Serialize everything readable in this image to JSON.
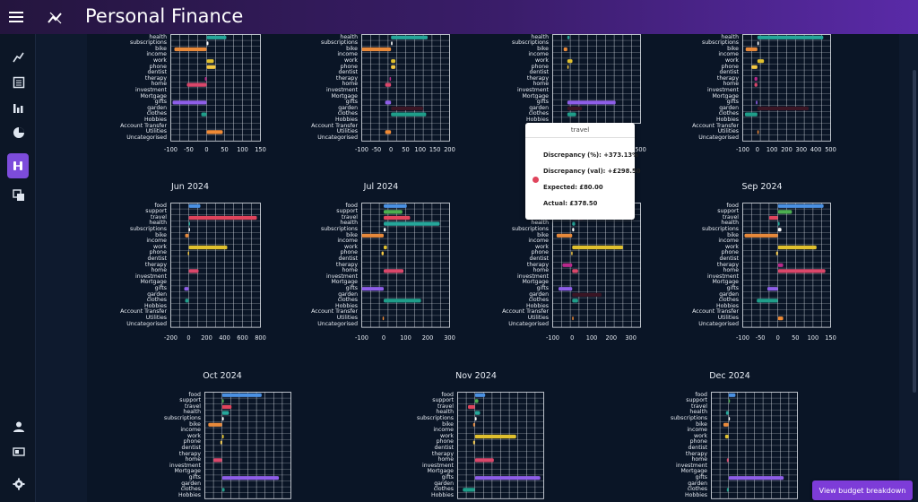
{
  "app": {
    "title": "Personal Finance"
  },
  "sidebar": {
    "items": [
      {
        "icon": "trend-icon",
        "label": "Trends"
      },
      {
        "icon": "list-icon",
        "label": "Transactions"
      },
      {
        "icon": "bar-chart-icon",
        "label": "Charts"
      },
      {
        "icon": "pie-chart-icon",
        "label": "Breakdown"
      },
      {
        "icon": "budget-icon",
        "label": "Budget"
      },
      {
        "icon": "copy-icon",
        "label": "Copy"
      },
      {
        "icon": "person-icon",
        "label": "Account"
      },
      {
        "icon": "import-icon",
        "label": "Import"
      },
      {
        "icon": "gear-icon",
        "label": "Settings"
      }
    ]
  },
  "categories": [
    "food",
    "support",
    "travel",
    "health",
    "subscriptions",
    "bike",
    "income",
    "work",
    "phone",
    "dentist",
    "therapy",
    "home",
    "investment",
    "Mortgage",
    "gifts",
    "garden",
    "clothes",
    "Hobbies",
    "Account Transfer",
    "Utilities",
    "Uncategorised"
  ],
  "colors": {
    "food": "#4a90e2",
    "support": "#4caf50",
    "travel": "#e0445c",
    "health": "#26a69a",
    "subscriptions": "#ffffff",
    "bike": "#e8893a",
    "income": "#9e9e9e",
    "work": "#e0c02e",
    "phone": "#f5c842",
    "dentist": "#e040fb",
    "therapy": "#b8288a",
    "home": "#d9476a",
    "investment": "#3f51b5",
    "Mortgage": "#4db6ac",
    "gifts": "#8e5ee8",
    "garden": "#3a1524",
    "clothes": "#1f9e8a",
    "Hobbies": "#7c4dff",
    "Account Transfer": "#5c6bc0",
    "Utilities": "#f08a35",
    "Uncategorised": "#888888"
  },
  "charts": [
    {
      "month": "",
      "ticks": [
        "-100",
        "-50",
        "0",
        "50",
        "100",
        "150"
      ],
      "xmin": -100,
      "xmax": 150,
      "values": {
        "health": 55,
        "subscriptions": 5,
        "bike": -90,
        "work": 20,
        "phone": 25,
        "therapy": -5,
        "home": -55,
        "gifts": -95,
        "clothes": -15,
        "Utilities": 45
      }
    },
    {
      "month": "",
      "ticks": [
        "-100",
        "-50",
        "0",
        "50",
        "100",
        "150",
        "200"
      ],
      "xmin": -100,
      "xmax": 200,
      "values": {
        "health": 125,
        "subscriptions": 5,
        "bike": -100,
        "work": 15,
        "phone": 15,
        "therapy": -5,
        "home": -20,
        "gifts": -20,
        "garden": 110,
        "clothes": 120,
        "Utilities": -20
      }
    },
    {
      "month": "",
      "ticks": [
        "-100",
        "0",
        "100",
        "200",
        "300",
        "400",
        "500"
      ],
      "xmin": -100,
      "xmax": 500,
      "values": {
        "health": 15,
        "bike": -25,
        "work": 35,
        "phone": 5,
        "gifts": 330,
        "garden": 100,
        "clothes": 60
      }
    },
    {
      "month": "",
      "ticks": [
        "-100",
        "0",
        "100",
        "200",
        "300",
        "400",
        "500"
      ],
      "xmin": -100,
      "xmax": 500,
      "values": {
        "health": 450,
        "subscriptions": 10,
        "bike": -80,
        "work": 45,
        "phone": -40,
        "therapy": -20,
        "home": -20,
        "gifts": -10,
        "garden": 350,
        "clothes": -85,
        "Utilities": 5
      }
    },
    {
      "month": "Jun 2024",
      "ticks": [
        "-200",
        "0",
        "200",
        "400",
        "600",
        "800"
      ],
      "xmin": -200,
      "xmax": 800,
      "values": {
        "food": 130,
        "travel": 760,
        "health": 10,
        "subscriptions": 10,
        "bike": -40,
        "work": 430,
        "phone": -10,
        "home": 110,
        "gifts": -50,
        "clothes": -40
      }
    },
    {
      "month": "Jul 2024",
      "ticks": [
        "-100",
        "0",
        "100",
        "200",
        "300"
      ],
      "xmin": -100,
      "xmax": 300,
      "values": {
        "food": 105,
        "support": 85,
        "travel": 120,
        "health": 255,
        "subscriptions": 10,
        "bike": -100,
        "work": 15,
        "phone": -10,
        "home": 90,
        "gifts": -100,
        "clothes": 170,
        "Utilities": -5
      }
    },
    {
      "month": "",
      "ticks": [
        "-100",
        "0",
        "100",
        "200",
        "300"
      ],
      "xmin": -100,
      "xmax": 350,
      "values": {
        "food": 40,
        "support": 25,
        "travel": 60,
        "health": 15,
        "subscriptions": 10,
        "bike": -80,
        "work": 260,
        "phone": -5,
        "therapy": -50,
        "home": 30,
        "gifts": -70,
        "garden": 150,
        "clothes": 30,
        "Utilities": 5
      }
    },
    {
      "month": "Sep 2024",
      "ticks": [
        "-100",
        "-50",
        "0",
        "50",
        "100",
        "150"
      ],
      "xmin": -100,
      "xmax": 150,
      "values": {
        "food": 130,
        "support": 40,
        "travel": -25,
        "health": 5,
        "subscriptions": 10,
        "bike": -95,
        "work": 110,
        "phone": -5,
        "therapy": 15,
        "home": 135,
        "gifts": -30,
        "clothes": -60,
        "Utilities": 15
      }
    },
    {
      "month": "Oct 2024",
      "ticks": [],
      "xmin": -100,
      "xmax": 400,
      "values": {
        "food": 230,
        "support": 10,
        "travel": 55,
        "health": 40,
        "subscriptions": 10,
        "bike": -80,
        "work": 10,
        "phone": -10,
        "home": -50,
        "gifts": 330,
        "clothes": 15
      }
    },
    {
      "month": "Nov 2024",
      "ticks": [],
      "xmin": -100,
      "xmax": 400,
      "values": {
        "food": 60,
        "support": 20,
        "travel": -40,
        "health": 30,
        "subscriptions": 10,
        "bike": -10,
        "work": 240,
        "phone": -10,
        "home": 110,
        "gifts": 380,
        "clothes": -70
      }
    },
    {
      "month": "Dec 2024",
      "ticks": [],
      "xmin": -100,
      "xmax": 400,
      "values": {
        "food": 40,
        "support": 5,
        "health": -15,
        "subscriptions": 5,
        "bike": -30,
        "work": -20,
        "home": -10,
        "gifts": 320,
        "clothes": -10
      }
    }
  ],
  "tooltip": {
    "title": "travel",
    "lines": [
      "Discrepancy (%): +373.13%",
      "Discrepancy (val): +£298.50",
      "Expected: £80.00",
      "Actual: £378.50"
    ]
  },
  "actions": {
    "budget_breakdown": "View budget breakdown"
  }
}
